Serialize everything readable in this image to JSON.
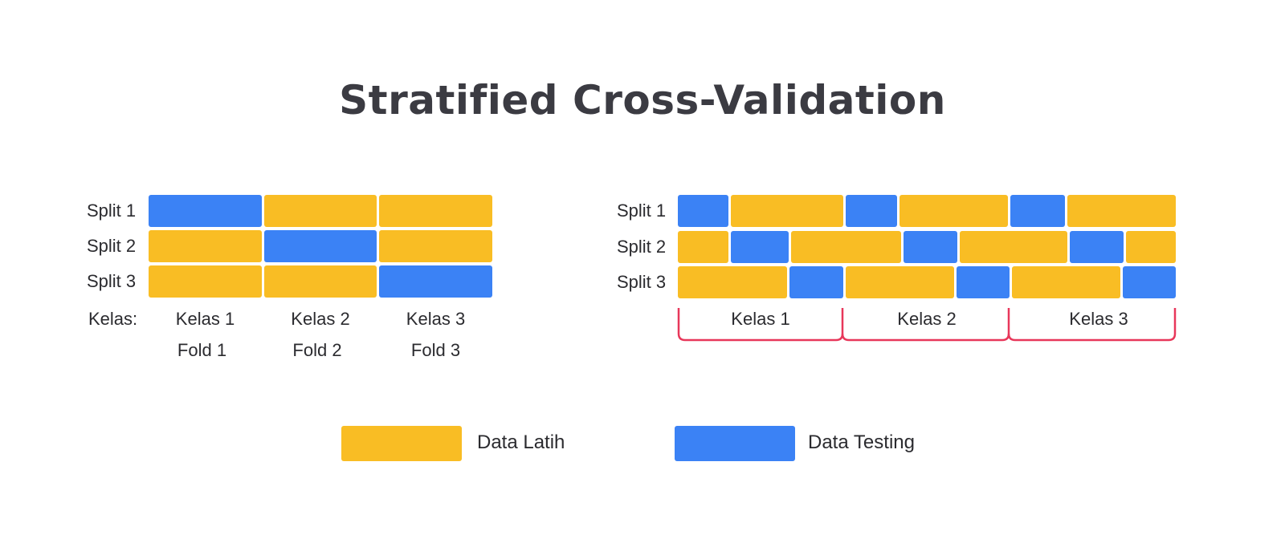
{
  "title": "Stratified Cross-Validation",
  "colors": {
    "train": "#f9bd24",
    "test": "#3b82f5",
    "bracket": "#e8375a"
  },
  "left_diagram": {
    "split_labels": [
      "Split 1",
      "Split 2",
      "Split 3"
    ],
    "kelas_label": "Kelas:",
    "kelas": [
      "Kelas 1",
      "Kelas 2",
      "Kelas 3"
    ],
    "folds": [
      "Fold 1",
      "Fold 2",
      "Fold 3"
    ],
    "rows": [
      [
        "test",
        "train",
        "train"
      ],
      [
        "train",
        "test",
        "train"
      ],
      [
        "train",
        "train",
        "test"
      ]
    ]
  },
  "right_diagram": {
    "split_labels": [
      "Split 1",
      "Split 2",
      "Split 3"
    ],
    "kelas": [
      "Kelas 1",
      "Kelas 2",
      "Kelas 3"
    ],
    "rows": [
      [
        "test",
        "train",
        "test",
        "train",
        "test",
        "train"
      ],
      [
        "train",
        "test",
        "train",
        "test",
        "train",
        "test",
        "train"
      ],
      [
        "train",
        "test",
        "train",
        "test",
        "train",
        "test"
      ]
    ]
  },
  "legend": {
    "train_label": "Data Latih",
    "test_label": "Data Testing"
  }
}
